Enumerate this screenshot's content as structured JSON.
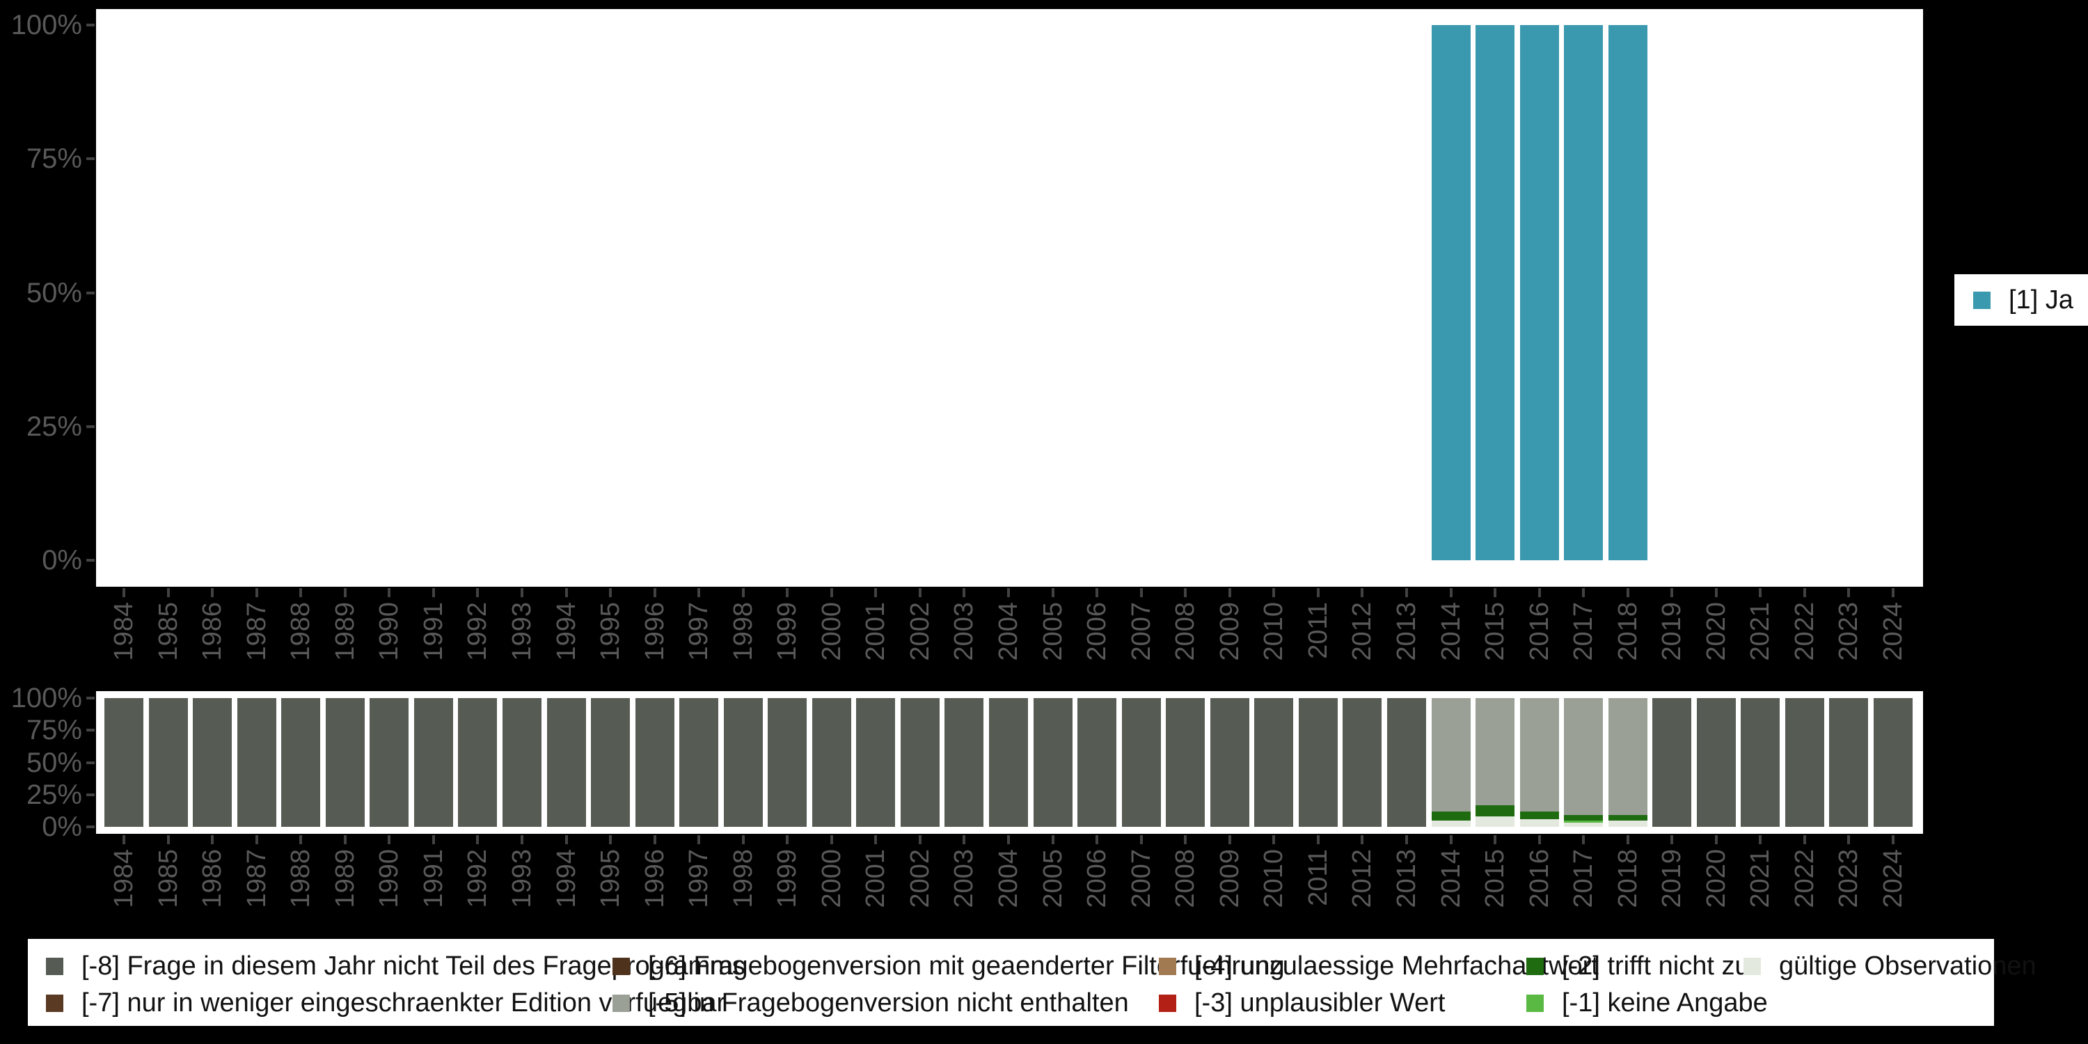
{
  "colors": {
    "background": "#000000",
    "panel": "#ffffff",
    "axis_text": "#595959",
    "tick": "#424242",
    "ja": "#3b99af",
    "m8": "#565c53",
    "m7": "#5a3a23",
    "m6": "#4f321b",
    "m5": "#9aa096",
    "m4": "#a17a52",
    "m3": "#b22016",
    "m2": "#1e6b10",
    "m1": "#5ab943",
    "valid": "#e4e9e0"
  },
  "years": [
    "1984",
    "1985",
    "1986",
    "1987",
    "1988",
    "1989",
    "1990",
    "1991",
    "1992",
    "1993",
    "1994",
    "1995",
    "1996",
    "1997",
    "1998",
    "1999",
    "2000",
    "2001",
    "2002",
    "2003",
    "2004",
    "2005",
    "2006",
    "2007",
    "2008",
    "2009",
    "2010",
    "2011",
    "2012",
    "2013",
    "2014",
    "2015",
    "2016",
    "2017",
    "2018",
    "2019",
    "2020",
    "2021",
    "2022",
    "2023",
    "2024"
  ],
  "y_tick_labels": [
    "100%",
    "75%",
    "50%",
    "25%",
    "0%"
  ],
  "top_legend": {
    "label": "[1] Ja",
    "color_key": "ja"
  },
  "bottom_legend": {
    "columns": [
      {
        "x": 26,
        "entries": [
          {
            "key": "m8",
            "label": "[-8] Frage in diesem Jahr nicht Teil des Frageprogramms"
          },
          {
            "key": "m7",
            "label": "[-7] nur in weniger eingeschraenkter Edition verfuegbar"
          }
        ]
      },
      {
        "x": 840,
        "entries": [
          {
            "key": "m6",
            "label": "[-6] Fragebogenversion mit geaenderter Filterfuehrung"
          },
          {
            "key": "m5",
            "label": "[-5] in Fragebogenversion nicht enthalten"
          }
        ]
      },
      {
        "x": 1625,
        "entries": [
          {
            "key": "m4",
            "label": "[-4] unzulaessige Mehrfachantwort"
          },
          {
            "key": "m3",
            "label": "[-3] unplausibler Wert"
          }
        ]
      },
      {
        "x": 2153,
        "entries": [
          {
            "key": "m2",
            "label": "[-2] trifft nicht zu"
          },
          {
            "key": "m1",
            "label": "[-1] keine Angabe"
          }
        ]
      },
      {
        "x": 2465,
        "entries": [
          {
            "key": "valid",
            "label": "gültige Observationen"
          }
        ]
      }
    ]
  },
  "chart_data": [
    {
      "type": "bar",
      "stacked": true,
      "title": "",
      "xlabel": "",
      "ylabel": "",
      "ylim": [
        0,
        100
      ],
      "y_tick_labels": [
        "100%",
        "75%",
        "50%",
        "25%",
        "0%"
      ],
      "grid": false,
      "legend_position": "right",
      "categories_from": "years",
      "series": [
        {
          "name": "[1] Ja",
          "color_key": "ja",
          "values": [
            0,
            0,
            0,
            0,
            0,
            0,
            0,
            0,
            0,
            0,
            0,
            0,
            0,
            0,
            0,
            0,
            0,
            0,
            0,
            0,
            0,
            0,
            0,
            0,
            0,
            0,
            0,
            0,
            0,
            0,
            100,
            100,
            100,
            100,
            100,
            0,
            0,
            0,
            0,
            0,
            0
          ]
        }
      ]
    },
    {
      "type": "bar",
      "stacked": true,
      "title": "",
      "xlabel": "",
      "ylabel": "",
      "ylim": [
        0,
        100
      ],
      "y_tick_labels": [
        "100%",
        "75%",
        "50%",
        "25%",
        "0%"
      ],
      "grid": false,
      "legend_position": "bottom",
      "categories_from": "years",
      "series": [
        {
          "name": "[-8] Frage in diesem Jahr nicht Teil des Frageprogramms",
          "color_key": "m8",
          "values": [
            100,
            100,
            100,
            100,
            100,
            100,
            100,
            100,
            100,
            100,
            100,
            100,
            100,
            100,
            100,
            100,
            100,
            100,
            100,
            100,
            100,
            100,
            100,
            100,
            100,
            100,
            100,
            100,
            100,
            100,
            0,
            0,
            0,
            0,
            0,
            100,
            100,
            100,
            100,
            100,
            100
          ]
        },
        {
          "name": "[-5] in Fragebogenversion nicht enthalten",
          "color_key": "m5",
          "values": [
            0,
            0,
            0,
            0,
            0,
            0,
            0,
            0,
            0,
            0,
            0,
            0,
            0,
            0,
            0,
            0,
            0,
            0,
            0,
            0,
            0,
            0,
            0,
            0,
            0,
            0,
            0,
            0,
            0,
            0,
            88,
            83,
            88,
            91,
            91,
            0,
            0,
            0,
            0,
            0,
            0
          ]
        },
        {
          "name": "[-2] trifft nicht zu",
          "color_key": "m2",
          "values": [
            0,
            0,
            0,
            0,
            0,
            0,
            0,
            0,
            0,
            0,
            0,
            0,
            0,
            0,
            0,
            0,
            0,
            0,
            0,
            0,
            0,
            0,
            0,
            0,
            0,
            0,
            0,
            0,
            0,
            0,
            7,
            9,
            6,
            4,
            4,
            0,
            0,
            0,
            0,
            0,
            0
          ]
        },
        {
          "name": "[-1] keine Angabe",
          "color_key": "m1",
          "values": [
            0,
            0,
            0,
            0,
            0,
            0,
            0,
            0,
            0,
            0,
            0,
            0,
            0,
            0,
            0,
            0,
            0,
            0,
            0,
            0,
            0,
            0,
            0,
            0,
            0,
            0,
            0,
            0,
            0,
            0,
            0,
            0,
            0,
            2,
            0,
            0,
            0,
            0,
            0,
            0,
            0
          ]
        },
        {
          "name": "gültige Observationen",
          "color_key": "valid",
          "values": [
            0,
            0,
            0,
            0,
            0,
            0,
            0,
            0,
            0,
            0,
            0,
            0,
            0,
            0,
            0,
            0,
            0,
            0,
            0,
            0,
            0,
            0,
            0,
            0,
            0,
            0,
            0,
            0,
            0,
            0,
            5,
            8,
            6,
            3,
            5,
            0,
            0,
            0,
            0,
            0,
            0
          ]
        }
      ]
    }
  ]
}
